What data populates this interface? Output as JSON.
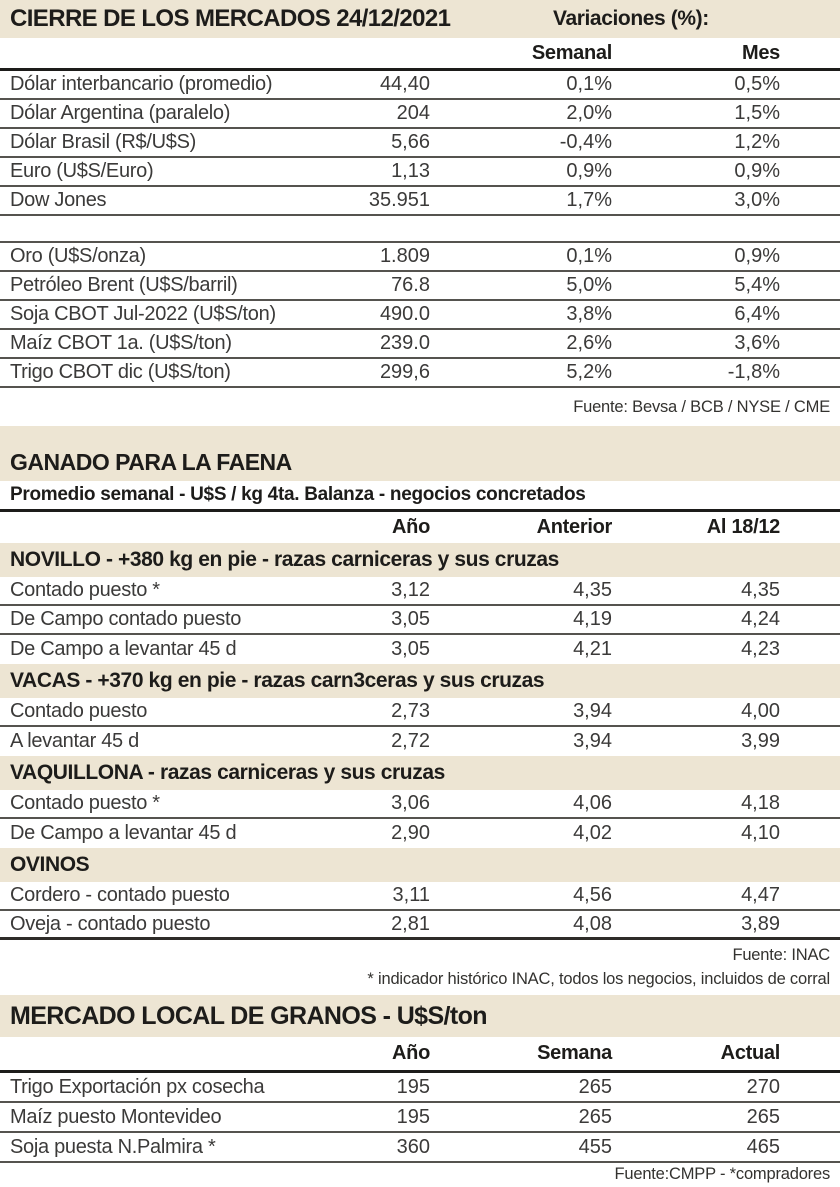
{
  "colors": {
    "cream": "#ede5d3",
    "rule_dark": "#1d1c1a",
    "rule_gray": "#55534f",
    "text": "#3b3a39"
  },
  "markets": {
    "title": "CIERRE DE LOS MERCADOS 24/12/2021",
    "variaciones_label": "Variaciones (%):",
    "col_semanal": "Semanal",
    "col_mes": "Mes",
    "group1": [
      {
        "label": "Dólar interbancario (promedio)",
        "value": "44,40",
        "semanal": "0,1%",
        "mes": "0,5%"
      },
      {
        "label": "Dólar Argentina (paralelo)",
        "value": "204",
        "semanal": "2,0%",
        "mes": "1,5%"
      },
      {
        "label": "Dólar Brasil (R$/U$S)",
        "value": "5,66",
        "semanal": "-0,4%",
        "mes": "1,2%"
      },
      {
        "label": "Euro (U$S/Euro)",
        "value": "1,13",
        "semanal": "0,9%",
        "mes": "0,9%"
      },
      {
        "label": "Dow Jones",
        "value": "35.951",
        "semanal": "1,7%",
        "mes": "3,0%"
      }
    ],
    "group2": [
      {
        "label": "Oro (U$S/onza)",
        "value": "1.809",
        "semanal": "0,1%",
        "mes": "0,9%"
      },
      {
        "label": "Petróleo Brent (U$S/barril)",
        "value": "76.8",
        "semanal": "5,0%",
        "mes": "5,4%"
      },
      {
        "label": "Soja CBOT Jul-2022 (U$S/ton)",
        "value": "490.0",
        "semanal": "3,8%",
        "mes": "6,4%"
      },
      {
        "label": "Maíz CBOT 1a. (U$S/ton)",
        "value": "239.0",
        "semanal": "2,6%",
        "mes": "3,6%"
      },
      {
        "label": "Trigo CBOT dic (U$S/ton)",
        "value": "299,6",
        "semanal": "5,2%",
        "mes": "-1,8%"
      }
    ],
    "fuente": "Fuente: Bevsa / BCB / NYSE / CME"
  },
  "ganado": {
    "title": "GANADO PARA LA FAENA",
    "subtitle": "Promedio semanal - U$S / kg 4ta. Balanza - negocios concretados",
    "col_ano": "Año",
    "col_anterior": "Anterior",
    "col_al": "Al 18/12",
    "sections": [
      {
        "header": "NOVILLO - +380 kg en pie - razas carniceras y sus cruzas",
        "rows": [
          {
            "label": "Contado puesto *",
            "ano": "3,12",
            "anterior": "4,35",
            "al": "4,35"
          },
          {
            "label": "De Campo contado puesto",
            "ano": "3,05",
            "anterior": "4,19",
            "al": "4,24"
          },
          {
            "label": "De Campo a levantar 45 d",
            "ano": "3,05",
            "anterior": "4,21",
            "al": "4,23"
          }
        ]
      },
      {
        "header": "VACAS - +370 kg en pie - razas carn3ceras y sus cruzas",
        "rows": [
          {
            "label": "Contado puesto",
            "ano": "2,73",
            "anterior": "3,94",
            "al": "4,00"
          },
          {
            "label": "A levantar 45 d",
            "ano": "2,72",
            "anterior": "3,94",
            "al": "3,99"
          }
        ]
      },
      {
        "header": "VAQUILLONA - razas carniceras y sus cruzas",
        "rows": [
          {
            "label": "Contado puesto *",
            "ano": "3,06",
            "anterior": "4,06",
            "al": "4,18"
          },
          {
            "label": "De Campo a levantar 45 d",
            "ano": "2,90",
            "anterior": "4,02",
            "al": "4,10"
          }
        ]
      },
      {
        "header": "OVINOS",
        "rows": [
          {
            "label": "Cordero - contado puesto",
            "ano": "3,11",
            "anterior": "4,56",
            "al": "4,47"
          },
          {
            "label": "Oveja - contado puesto",
            "ano": "2,81",
            "anterior": "4,08",
            "al": "3,89"
          }
        ]
      }
    ],
    "fuente": "Fuente: INAC",
    "note": "* indicador histórico INAC, todos los negocios, incluidos de corral"
  },
  "granos": {
    "title": "MERCADO LOCAL DE GRANOS - U$S/ton",
    "col_ano": "Año",
    "col_semana": "Semana",
    "col_actual": "Actual",
    "rows": [
      {
        "label": "Trigo Exportación px cosecha",
        "ano": "195",
        "semana": "265",
        "actual": "270"
      },
      {
        "label": "Maíz puesto Montevideo",
        "ano": "195",
        "semana": "265",
        "actual": "265"
      },
      {
        "label": "Soja puesta N.Palmira *",
        "ano": "360",
        "semana": "455",
        "actual": "465"
      }
    ],
    "fuente": "Fuente:CMPP - *compradores"
  }
}
